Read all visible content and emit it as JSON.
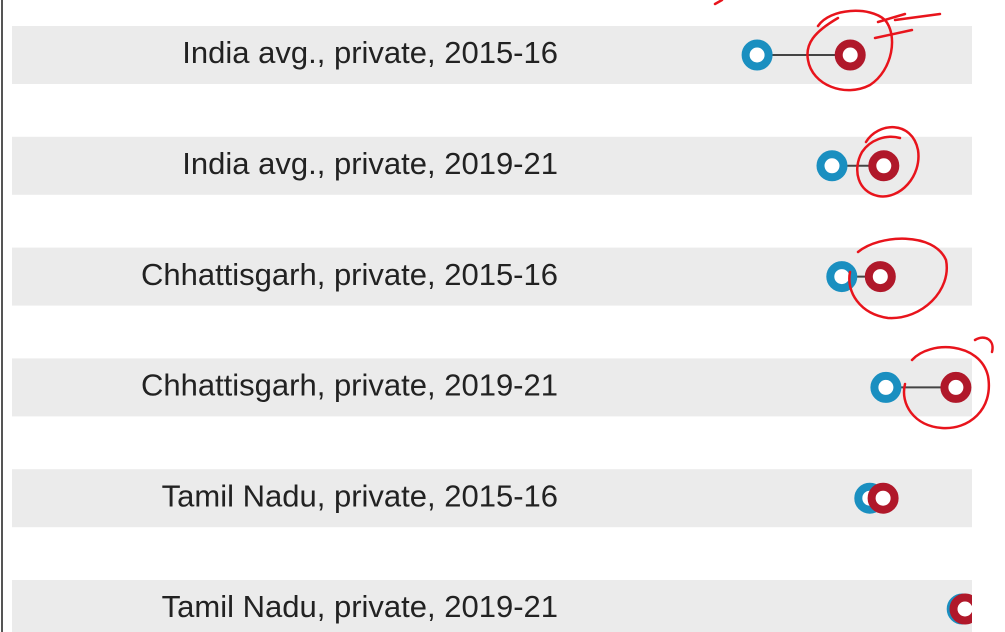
{
  "chart_data": {
    "type": "dumbbell",
    "categories": [
      "India avg., private, 2015-16",
      "India avg., private,  2019-21",
      "Chhattisgarh, private, 2015-16",
      "Chhattisgarh, private, 2019-21",
      "Tamil Nadu, private, 2015-16",
      "Tamil Nadu, private, 2019-21"
    ],
    "series": [
      {
        "color": "#1a8fc0",
        "values": [
          65.3,
          76.0,
          77.4,
          83.7,
          81.4,
          94.6
        ]
      },
      {
        "color": "#b0182a",
        "values": [
          78.6,
          83.4,
          82.9,
          93.7,
          83.3,
          95.0
        ]
      }
    ],
    "xlim": [
      0,
      100
    ]
  }
}
